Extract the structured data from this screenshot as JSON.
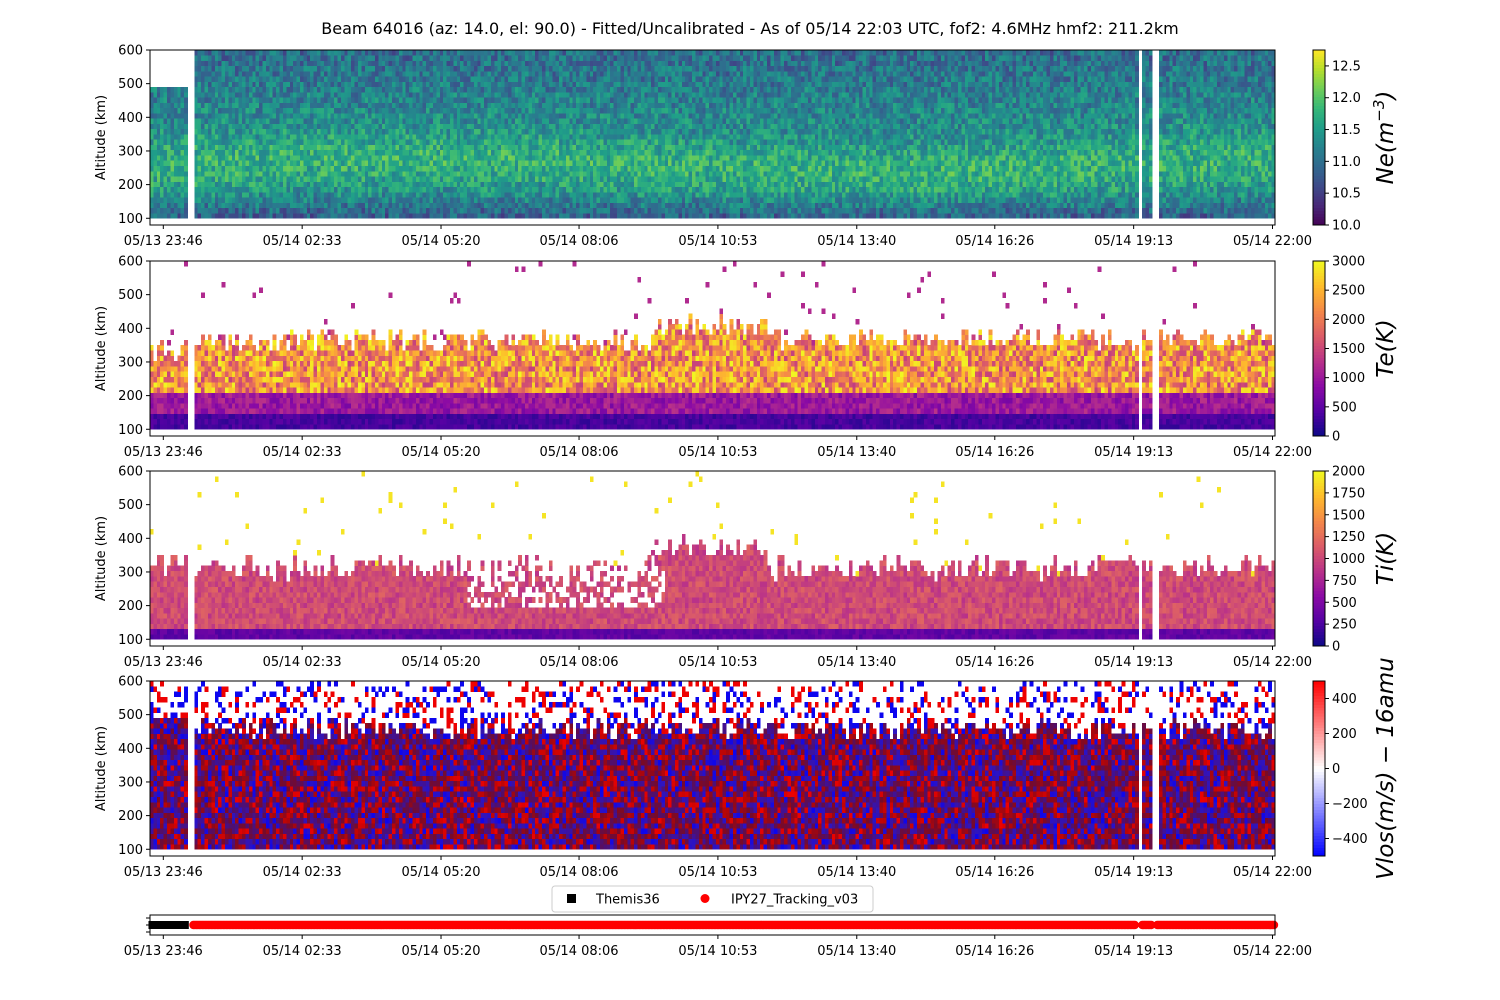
{
  "title": "Beam 64016 (az: 14.0, el: 90.0) - Fitted/Uncalibrated - As of 05/14 22:03 UTC, fof2: 4.6MHz  hmf2: 211.2km",
  "chart_data": [
    {
      "type": "heatmap",
      "ylabel": "Altitude (km)",
      "colorbar_label": "Ne(m⁻³)",
      "colorbar_label_main": "Ne(m",
      "colorbar_label_sup": "−3",
      "colorbar_label_tail": ")",
      "colormap": "viridis",
      "clim": [
        10.0,
        12.75
      ],
      "colorbar_ticks": [
        "10.0",
        "10.5",
        "11.0",
        "11.5",
        "12.0",
        "12.5"
      ],
      "colorbar_tick_values": [
        10.0,
        10.5,
        11.0,
        11.5,
        12.0,
        12.5
      ],
      "ylim": [
        80,
        600
      ],
      "yticks": [
        100,
        200,
        300,
        400,
        500,
        600
      ],
      "x_tick_labels": [
        "05/13 23:46",
        "05/14 02:33",
        "05/14 05:20",
        "05/14 08:06",
        "05/14 10:53",
        "05/14 13:40",
        "05/14 16:26",
        "05/14 19:13",
        "05/14 22:00"
      ],
      "data_hour_range": [
        -0.5,
        22.05
      ],
      "gaps_hours": [
        [
          0.2,
          0.37
        ],
        [
          19.25,
          19.36
        ],
        [
          19.58,
          19.66
        ]
      ],
      "altitude_top_before_gap": 485
    },
    {
      "type": "heatmap",
      "ylabel": "Altitude (km)",
      "colorbar_label": "Te(K)",
      "colormap": "plasma",
      "clim": [
        0,
        3000
      ],
      "colorbar_ticks": [
        "0",
        "500",
        "1000",
        "1500",
        "2000",
        "2500",
        "3000"
      ],
      "colorbar_tick_values": [
        0,
        500,
        1000,
        1500,
        2000,
        2500,
        3000
      ],
      "ylim": [
        80,
        600
      ],
      "yticks": [
        100,
        200,
        300,
        400,
        500,
        600
      ],
      "x_tick_labels": [
        "05/13 23:46",
        "05/14 02:33",
        "05/14 05:20",
        "05/14 08:06",
        "05/14 10:53",
        "05/14 13:40",
        "05/14 16:26",
        "05/14 19:13",
        "05/14 22:00"
      ]
    },
    {
      "type": "heatmap",
      "ylabel": "Altitude (km)",
      "colorbar_label": "Ti(K)",
      "colormap": "plasma",
      "clim": [
        0,
        2000
      ],
      "colorbar_ticks": [
        "0",
        "250",
        "500",
        "750",
        "1000",
        "1250",
        "1500",
        "1750",
        "2000"
      ],
      "colorbar_tick_values": [
        0,
        250,
        500,
        750,
        1000,
        1250,
        1500,
        1750,
        2000
      ],
      "ylim": [
        80,
        600
      ],
      "yticks": [
        100,
        200,
        300,
        400,
        500,
        600
      ],
      "x_tick_labels": [
        "05/13 23:46",
        "05/14 02:33",
        "05/14 05:20",
        "05/14 08:06",
        "05/14 10:53",
        "05/14 13:40",
        "05/14 16:26",
        "05/14 19:13",
        "05/14 22:00"
      ]
    },
    {
      "type": "heatmap",
      "ylabel": "Altitude (km)",
      "colorbar_label": "Vlos(m/s) − 16amu",
      "colormap": "bwr",
      "clim": [
        -500,
        500
      ],
      "colorbar_ticks": [
        "−400",
        "−200",
        "0",
        "200",
        "400"
      ],
      "colorbar_tick_values": [
        -400,
        -200,
        0,
        200,
        400
      ],
      "ylim": [
        80,
        600
      ],
      "yticks": [
        100,
        200,
        300,
        400,
        500,
        600
      ],
      "x_tick_labels": [
        "05/13 23:46",
        "05/14 02:33",
        "05/14 05:20",
        "05/14 08:06",
        "05/14 10:53",
        "05/14 13:40",
        "05/14 16:26",
        "05/14 19:13",
        "05/14 22:00"
      ]
    },
    {
      "type": "scatter",
      "legend_placement": "top-center",
      "x_tick_labels": [
        "05/13 23:46",
        "05/14 02:33",
        "05/14 05:20",
        "05/14 08:06",
        "05/14 10:53",
        "05/14 13:40",
        "05/14 16:26",
        "05/14 19:13",
        "05/14 22:00"
      ],
      "series": [
        {
          "name": "Themis36",
          "marker": "square",
          "color": "#000000",
          "x_range": [
            "05/13 23:19",
            "05/14 00:12"
          ]
        },
        {
          "name": "IPY27_Tracking_v03",
          "marker": "circle",
          "color": "#ff0000",
          "x_range": [
            "05/14 00:22",
            "05/14 22:03"
          ]
        }
      ]
    }
  ],
  "colors": {
    "themis": "#000000",
    "ipy": "#ff0000",
    "axes": "#000000"
  }
}
